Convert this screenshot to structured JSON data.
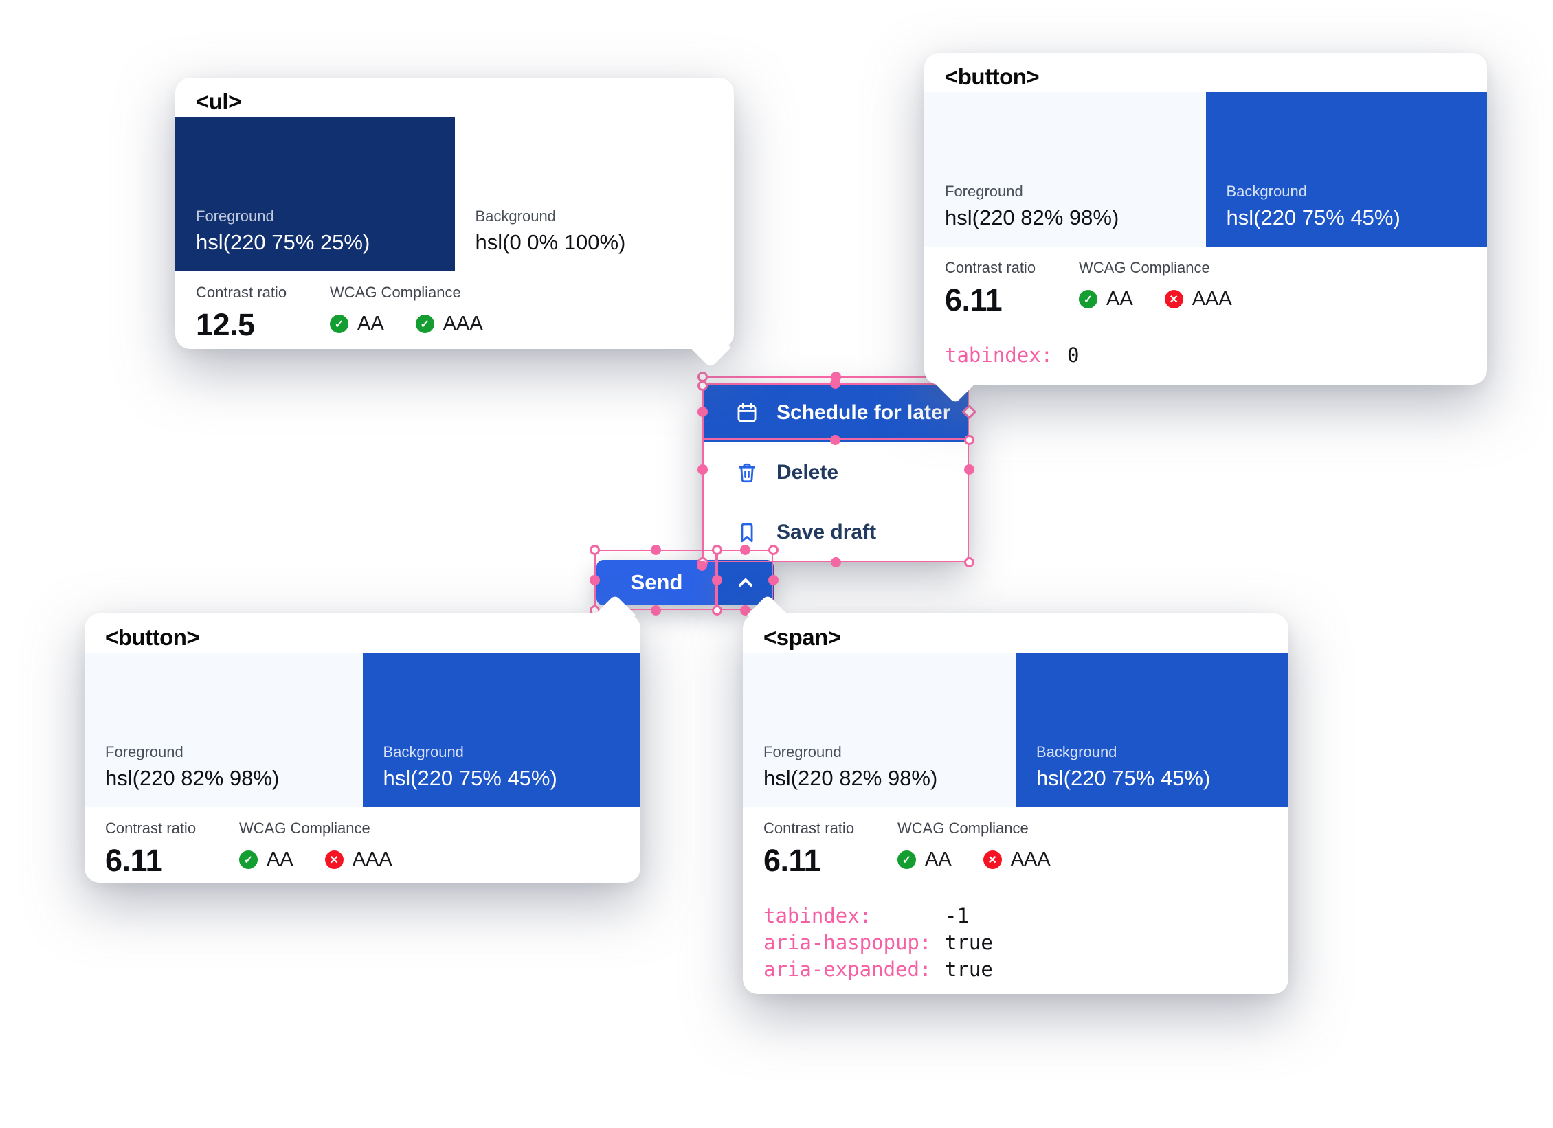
{
  "colors": {
    "accent_blue": "hsl(220 75% 45%)",
    "send_blue": "#2c63e6",
    "selection_pink": "#f566a4",
    "pass_green": "#149d30",
    "fail_red": "#f51423"
  },
  "cards": {
    "ul": {
      "tag": "<ul>",
      "foreground": {
        "label": "Foreground",
        "value": "hsl(220 75% 25%)"
      },
      "background": {
        "label": "Background",
        "value": "hsl(0 0% 100%)"
      },
      "contrast": {
        "label": "Contrast ratio",
        "value": "12.5"
      },
      "wcag": {
        "label": "WCAG Compliance",
        "aa": {
          "label": "AA",
          "status": "pass"
        },
        "aaa": {
          "label": "AAA",
          "status": "pass"
        }
      },
      "attributes": []
    },
    "button_top": {
      "tag": "<button>",
      "foreground": {
        "label": "Foreground",
        "value": "hsl(220 82% 98%)"
      },
      "background": {
        "label": "Background",
        "value": "hsl(220 75% 45%)"
      },
      "contrast": {
        "label": "Contrast ratio",
        "value": "6.11"
      },
      "wcag": {
        "label": "WCAG Compliance",
        "aa": {
          "label": "AA",
          "status": "pass"
        },
        "aaa": {
          "label": "AAA",
          "status": "fail"
        }
      },
      "attributes": [
        {
          "name": "tabindex:",
          "value": "0"
        }
      ]
    },
    "button_bottom": {
      "tag": "<button>",
      "foreground": {
        "label": "Foreground",
        "value": "hsl(220 82% 98%)"
      },
      "background": {
        "label": "Background",
        "value": "hsl(220 75% 45%)"
      },
      "contrast": {
        "label": "Contrast ratio",
        "value": "6.11"
      },
      "wcag": {
        "label": "WCAG Compliance",
        "aa": {
          "label": "AA",
          "status": "pass"
        },
        "aaa": {
          "label": "AAA",
          "status": "fail"
        }
      },
      "attributes": []
    },
    "span": {
      "tag": "<span>",
      "foreground": {
        "label": "Foreground",
        "value": "hsl(220 82% 98%)"
      },
      "background": {
        "label": "Background",
        "value": "hsl(220 75% 45%)"
      },
      "contrast": {
        "label": "Contrast ratio",
        "value": "6.11"
      },
      "wcag": {
        "label": "WCAG Compliance",
        "aa": {
          "label": "AA",
          "status": "pass"
        },
        "aaa": {
          "label": "AAA",
          "status": "fail"
        }
      },
      "attributes": [
        {
          "name": "tabindex:",
          "value": "-1"
        },
        {
          "name": "aria-haspopup:",
          "value": "true"
        },
        {
          "name": "aria-expanded:",
          "value": "true"
        }
      ]
    }
  },
  "menu": {
    "items": [
      {
        "label": "Schedule for later",
        "icon": "calendar-icon",
        "active": true
      },
      {
        "label": "Delete",
        "icon": "trash-icon",
        "active": false
      },
      {
        "label": "Save draft",
        "icon": "bookmark-icon",
        "active": false
      }
    ]
  },
  "split_button": {
    "send_label": "Send",
    "toggle_icon": "chevron-up-icon"
  }
}
